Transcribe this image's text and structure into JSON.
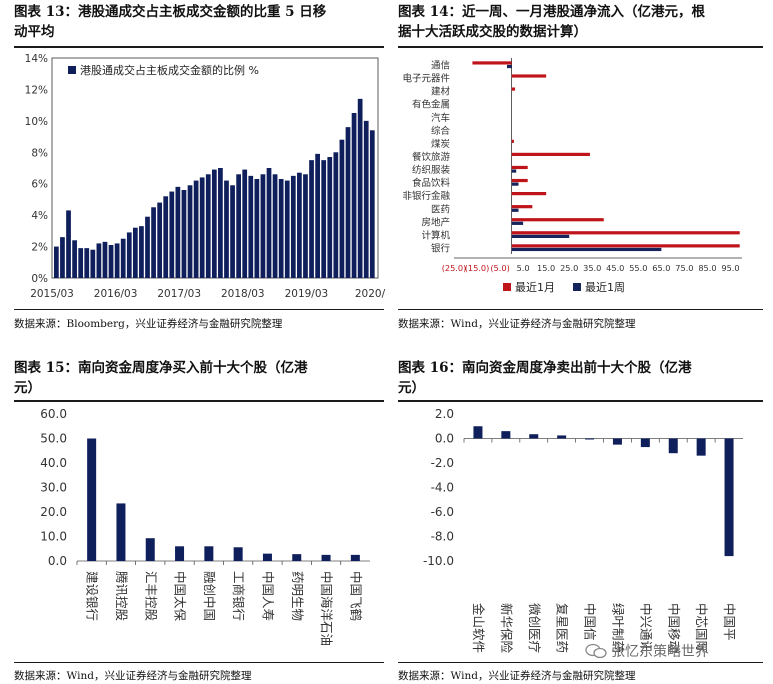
{
  "panels": [
    {
      "title_line1": "图表 13：港股通成交占主板成交金额的比重 5 日移",
      "title_line2": "动平均",
      "source": "数据来源：Bloomberg，兴业证券经济与金融研究院整理"
    },
    {
      "title_line1": "图表 14：近一周、一月港股通净流入（亿港元，根",
      "title_line2": "据十大活跃成交股的数据计算）",
      "source": "数据来源：Wind，兴业证券经济与金融研究院整理"
    },
    {
      "title_line1": "图表 15：南向资金周度净买入前十大个股（亿港",
      "title_line2": "元）",
      "source": "数据来源：Wind，兴业证券经济与金融研究院整理"
    },
    {
      "title_line1": "图表 16：南向资金周度净卖出前十大个股（亿港",
      "title_line2": "元）",
      "source": "数据来源：Wind，兴业证券经济与金融研究院整理"
    }
  ],
  "watermark": "张忆东策略世界",
  "chart_data": [
    {
      "type": "bar",
      "legend": "港股通成交占主板成交金额的比例 %",
      "x_tick_labels": [
        "2015/03",
        "2016/03",
        "2017/03",
        "2018/03",
        "2019/03",
        "2020/"
      ],
      "y_tick_labels": [
        "0%",
        "2%",
        "4%",
        "6%",
        "8%",
        "10%",
        "12%",
        "14%"
      ],
      "ylim": [
        0,
        14
      ],
      "legend_position": "top-left",
      "color": "#0f1f5c",
      "x_start": "2015/03",
      "x_end": "2020/",
      "values": [
        2.0,
        2.6,
        4.3,
        2.4,
        1.9,
        1.9,
        1.8,
        2.2,
        2.3,
        2.1,
        2.2,
        2.5,
        2.9,
        3.2,
        3.3,
        3.9,
        4.5,
        4.8,
        5.2,
        5.5,
        5.8,
        5.6,
        5.9,
        6.2,
        6.4,
        6.6,
        6.9,
        7.0,
        6.2,
        5.9,
        6.6,
        6.9,
        6.5,
        6.3,
        6.6,
        7.0,
        6.6,
        6.3,
        6.2,
        6.5,
        6.7,
        6.6,
        7.5,
        7.9,
        7.5,
        7.7,
        8.0,
        8.8,
        9.6,
        10.5,
        11.4,
        10.0,
        9.4
      ]
    },
    {
      "type": "bar",
      "orientation": "horizontal",
      "categories": [
        "通信",
        "电子元器件",
        "建材",
        "有色金属",
        "汽车",
        "综合",
        "煤炭",
        "餐饮旅游",
        "纺织服装",
        "食品饮料",
        "非银行金融",
        "医药",
        "房地产",
        "计算机",
        "银行"
      ],
      "x_tick_labels": [
        "(25.0)",
        "(15.0)",
        "(5.0)",
        "5.0",
        "15.0",
        "25.0",
        "35.0",
        "45.0",
        "55.0",
        "65.0",
        "75.0",
        "85.0",
        "95.0"
      ],
      "xlim": [
        -25,
        100
      ],
      "series": [
        {
          "name": "最近1月",
          "color": "#c0141b",
          "values": [
            -17.0,
            15.0,
            1.5,
            0,
            0,
            0,
            1.0,
            34.0,
            7.0,
            7.0,
            15.0,
            9.0,
            40.0,
            99.0,
            99.0
          ]
        },
        {
          "name": "最近1周",
          "color": "#16245c",
          "values": [
            -2.0,
            0,
            0,
            0,
            0,
            0,
            0,
            0,
            2.0,
            3.0,
            0,
            3.0,
            5.0,
            25.0,
            65.0
          ]
        }
      ],
      "legend_position": "bottom"
    },
    {
      "type": "bar",
      "categories": [
        "建设银行",
        "腾讯控股",
        "汇丰控股",
        "中国太保",
        "融创中国",
        "工商银行",
        "中国人寿",
        "药明生物",
        "中国海洋石油",
        "中国飞鹤"
      ],
      "values": [
        50.0,
        23.5,
        9.3,
        6.0,
        6.0,
        5.6,
        3.0,
        2.8,
        2.5,
        2.5
      ],
      "y_tick_labels": [
        "0.0",
        "10.0",
        "20.0",
        "30.0",
        "40.0",
        "50.0",
        "60.0"
      ],
      "ylim": [
        0,
        60
      ],
      "color": "#0f1f5c"
    },
    {
      "type": "bar",
      "categories": [
        "金山软件",
        "新华保险",
        "微创医疗",
        "复星医药",
        "中国信",
        "绿叶制药",
        "中兴通讯",
        "中国移动",
        "中芯国际",
        "中国平"
      ],
      "values": [
        1.0,
        0.6,
        0.35,
        0.25,
        -0.05,
        -0.5,
        -0.7,
        -1.2,
        -1.4,
        -9.6
      ],
      "y_tick_labels": [
        "-10.0",
        "-8.0",
        "-6.0",
        "-4.0",
        "-2.0",
        "0.0",
        "2.0"
      ],
      "ylim": [
        -10,
        2
      ],
      "color": "#0f1f5c"
    }
  ]
}
